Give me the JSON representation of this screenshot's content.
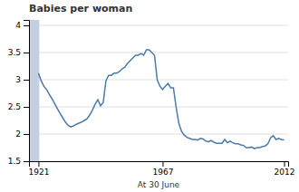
{
  "chart_data": {
    "type": "line",
    "title": "Babies per woman",
    "xlabel": "At 30 June",
    "x": [
      1921,
      1922,
      1923,
      1924,
      1925,
      1926,
      1927,
      1928,
      1929,
      1930,
      1931,
      1932,
      1933,
      1934,
      1935,
      1936,
      1937,
      1938,
      1939,
      1940,
      1941,
      1942,
      1943,
      1944,
      1945,
      1946,
      1947,
      1948,
      1949,
      1950,
      1951,
      1952,
      1953,
      1954,
      1955,
      1956,
      1957,
      1958,
      1959,
      1960,
      1961,
      1962,
      1963,
      1964,
      1965,
      1966,
      1967,
      1968,
      1969,
      1970,
      1971,
      1972,
      1973,
      1974,
      1975,
      1976,
      1977,
      1978,
      1979,
      1980,
      1981,
      1982,
      1983,
      1984,
      1985,
      1986,
      1987,
      1988,
      1989,
      1990,
      1991,
      1992,
      1993,
      1994,
      1995,
      1996,
      1997,
      1998,
      1999,
      2000,
      2001,
      2002,
      2003,
      2004,
      2005,
      2006,
      2007,
      2008,
      2009,
      2010,
      2011,
      2012
    ],
    "values": [
      3.12,
      2.98,
      2.88,
      2.82,
      2.73,
      2.65,
      2.56,
      2.47,
      2.38,
      2.3,
      2.22,
      2.16,
      2.13,
      2.15,
      2.18,
      2.2,
      2.22,
      2.25,
      2.28,
      2.35,
      2.44,
      2.55,
      2.63,
      2.52,
      2.58,
      2.98,
      3.08,
      3.08,
      3.12,
      3.12,
      3.15,
      3.2,
      3.23,
      3.3,
      3.35,
      3.4,
      3.45,
      3.45,
      3.48,
      3.45,
      3.55,
      3.55,
      3.5,
      3.45,
      3.0,
      2.88,
      2.82,
      2.88,
      2.93,
      2.85,
      2.85,
      2.5,
      2.2,
      2.05,
      1.98,
      1.94,
      1.92,
      1.9,
      1.9,
      1.89,
      1.92,
      1.91,
      1.87,
      1.86,
      1.88,
      1.85,
      1.83,
      1.83,
      1.83,
      1.9,
      1.84,
      1.87,
      1.84,
      1.82,
      1.82,
      1.8,
      1.79,
      1.75,
      1.75,
      1.76,
      1.73,
      1.75,
      1.75,
      1.77,
      1.78,
      1.82,
      1.93,
      1.97,
      1.9,
      1.92,
      1.9,
      1.89
    ],
    "color": "#4c7aaa",
    "xlim": [
      1917.5,
      2013.5
    ],
    "xticks": [
      1921,
      1967,
      2012
    ],
    "ylim": [
      1.5,
      4.1
    ],
    "yticks": [
      1.5,
      2,
      2.5,
      3,
      3.5,
      4
    ],
    "grid": true,
    "shaded_region": {
      "x": [
        1917.5,
        1921.3
      ],
      "color": "#c5cfe0"
    }
  }
}
